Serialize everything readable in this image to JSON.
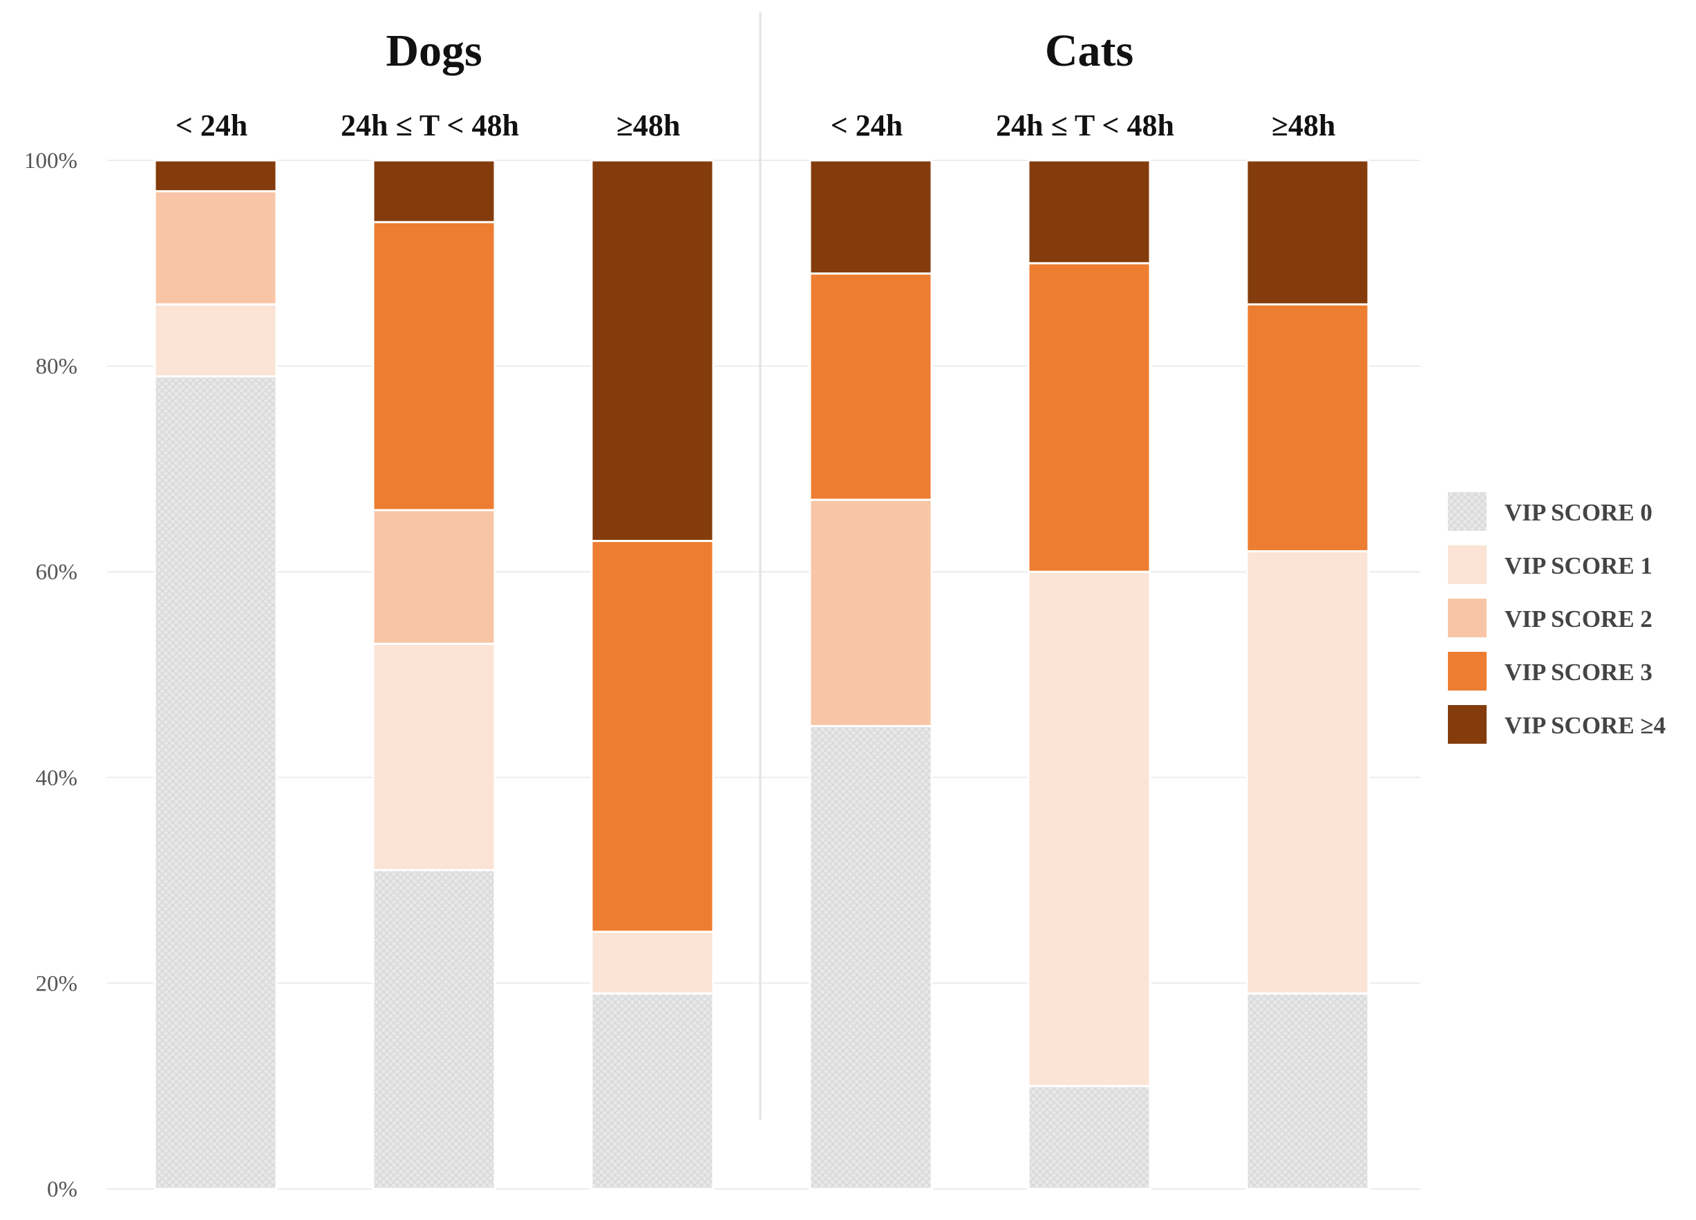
{
  "chart_data": {
    "type": "bar",
    "stacked": true,
    "percent": true,
    "groups": [
      {
        "title": "Dogs",
        "categories": [
          "< 24h",
          "24h ≤ T < 48h",
          "≥48h"
        ]
      },
      {
        "title": "Cats",
        "categories": [
          "< 24h",
          "24h ≤ T < 48h",
          "≥48h"
        ]
      }
    ],
    "categories": [
      "< 24h",
      "24h ≤ T < 48h",
      "≥48h",
      "< 24h",
      "24h ≤ T < 48h",
      "≥48h"
    ],
    "series": [
      {
        "name": "VIP SCORE 0",
        "color": "#e6e6e6",
        "pattern": "crosshatch",
        "values": [
          79,
          31,
          19,
          45,
          10,
          19
        ]
      },
      {
        "name": "VIP SCORE 1",
        "color": "#fbe4d6",
        "values": [
          7,
          22,
          6,
          0,
          50,
          43
        ]
      },
      {
        "name": "VIP SCORE 2",
        "color": "#f8c6a6",
        "values": [
          11,
          13,
          0,
          22,
          0,
          0
        ]
      },
      {
        "name": "VIP SCORE 3",
        "color": "#ed7d31",
        "values": [
          0,
          28,
          38,
          22,
          30,
          24
        ]
      },
      {
        "name": "VIP SCORE ≥4",
        "color": "#843c0c",
        "values": [
          3,
          6,
          37,
          11,
          10,
          14
        ]
      }
    ],
    "title": "",
    "xlabel": "",
    "ylabel": "",
    "ylim": [
      0,
      100
    ],
    "y_ticks": [
      "0%",
      "20%",
      "40%",
      "60%",
      "80%",
      "100%"
    ],
    "grid": true,
    "legend_position": "right"
  }
}
